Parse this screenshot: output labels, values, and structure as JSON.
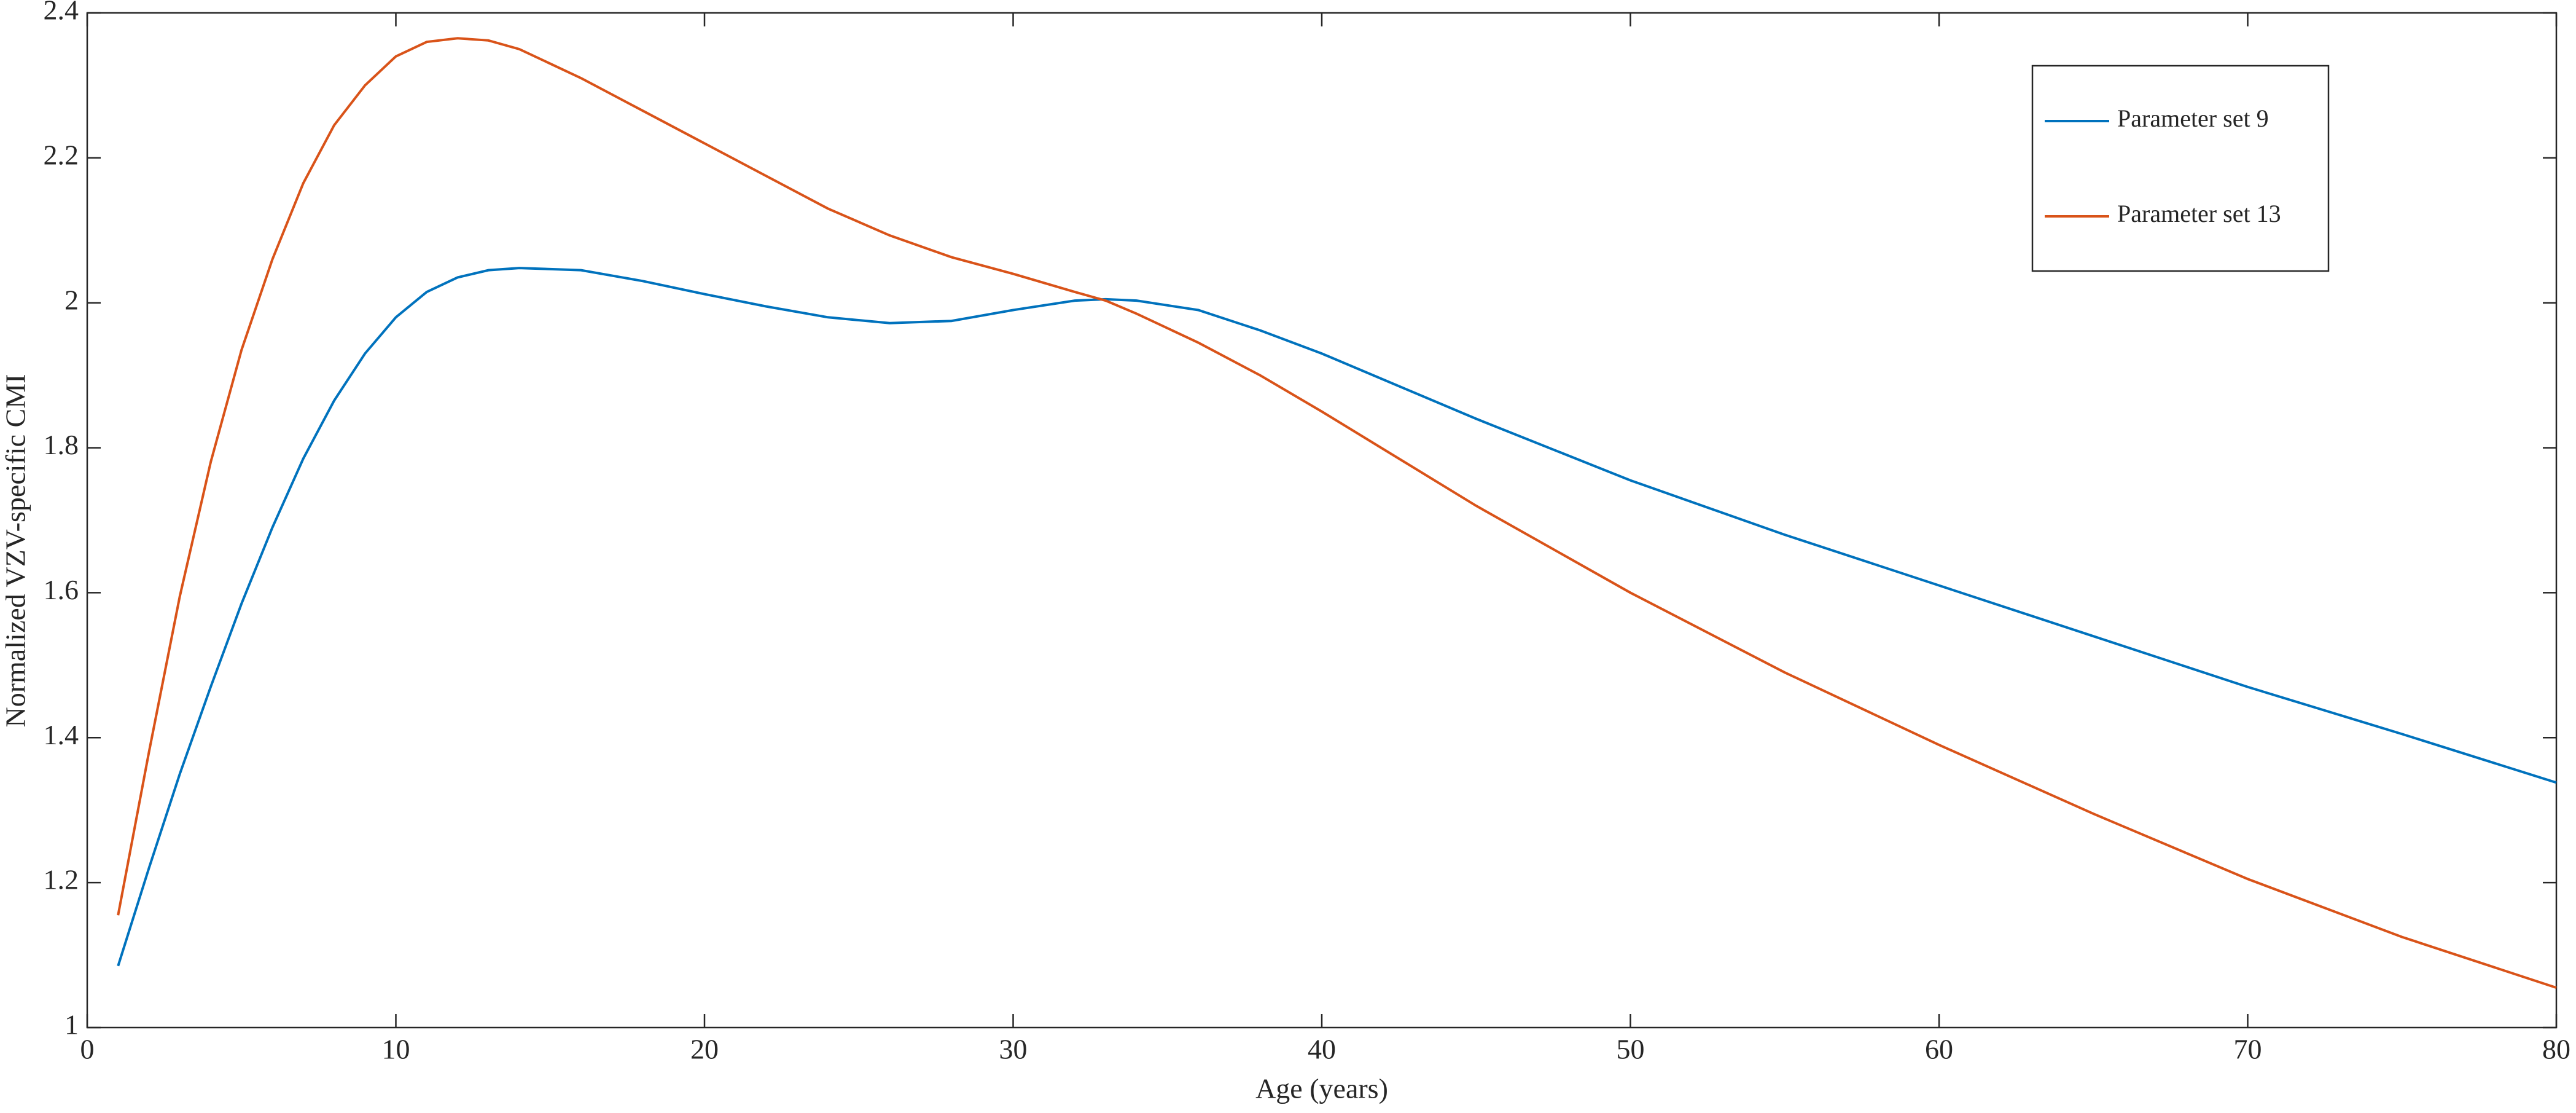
{
  "chart_data": {
    "type": "line",
    "x": [
      1,
      2,
      3,
      4,
      5,
      6,
      7,
      8,
      9,
      10,
      11,
      12,
      13,
      14,
      16,
      18,
      20,
      22,
      24,
      26,
      28,
      30,
      32,
      33,
      34,
      36,
      38,
      40,
      45,
      50,
      55,
      60,
      65,
      70,
      75,
      80
    ],
    "series": [
      {
        "name": "Parameter set 9",
        "color": "#0072bd",
        "values": [
          1.085,
          1.22,
          1.35,
          1.47,
          1.585,
          1.69,
          1.785,
          1.865,
          1.93,
          1.98,
          2.015,
          2.035,
          2.045,
          2.048,
          2.045,
          2.03,
          2.012,
          1.995,
          1.98,
          1.972,
          1.975,
          1.99,
          2.003,
          2.005,
          2.003,
          1.99,
          1.962,
          1.93,
          1.84,
          1.755,
          1.68,
          1.61,
          1.54,
          1.47,
          1.405,
          1.338
        ]
      },
      {
        "name": "Parameter set 13",
        "color": "#d95319",
        "values": [
          1.155,
          1.38,
          1.595,
          1.78,
          1.935,
          2.06,
          2.165,
          2.245,
          2.3,
          2.34,
          2.36,
          2.365,
          2.362,
          2.35,
          2.31,
          2.265,
          2.22,
          2.175,
          2.13,
          2.093,
          2.063,
          2.04,
          2.015,
          2.003,
          1.985,
          1.945,
          1.9,
          1.85,
          1.72,
          1.6,
          1.49,
          1.39,
          1.295,
          1.205,
          1.125,
          1.055
        ]
      }
    ],
    "x_label": "Age (years)",
    "y_label": "Normalized VZV-specific CMI",
    "xlim": [
      0,
      80
    ],
    "xticks": [
      0,
      10,
      20,
      30,
      40,
      50,
      60,
      70,
      80
    ],
    "ylim": [
      1,
      2.4
    ],
    "yticks": [
      1,
      1.2,
      1.4,
      1.6,
      1.8,
      2,
      2.2,
      2.4
    ],
    "grid": false,
    "legend": "upper right"
  }
}
